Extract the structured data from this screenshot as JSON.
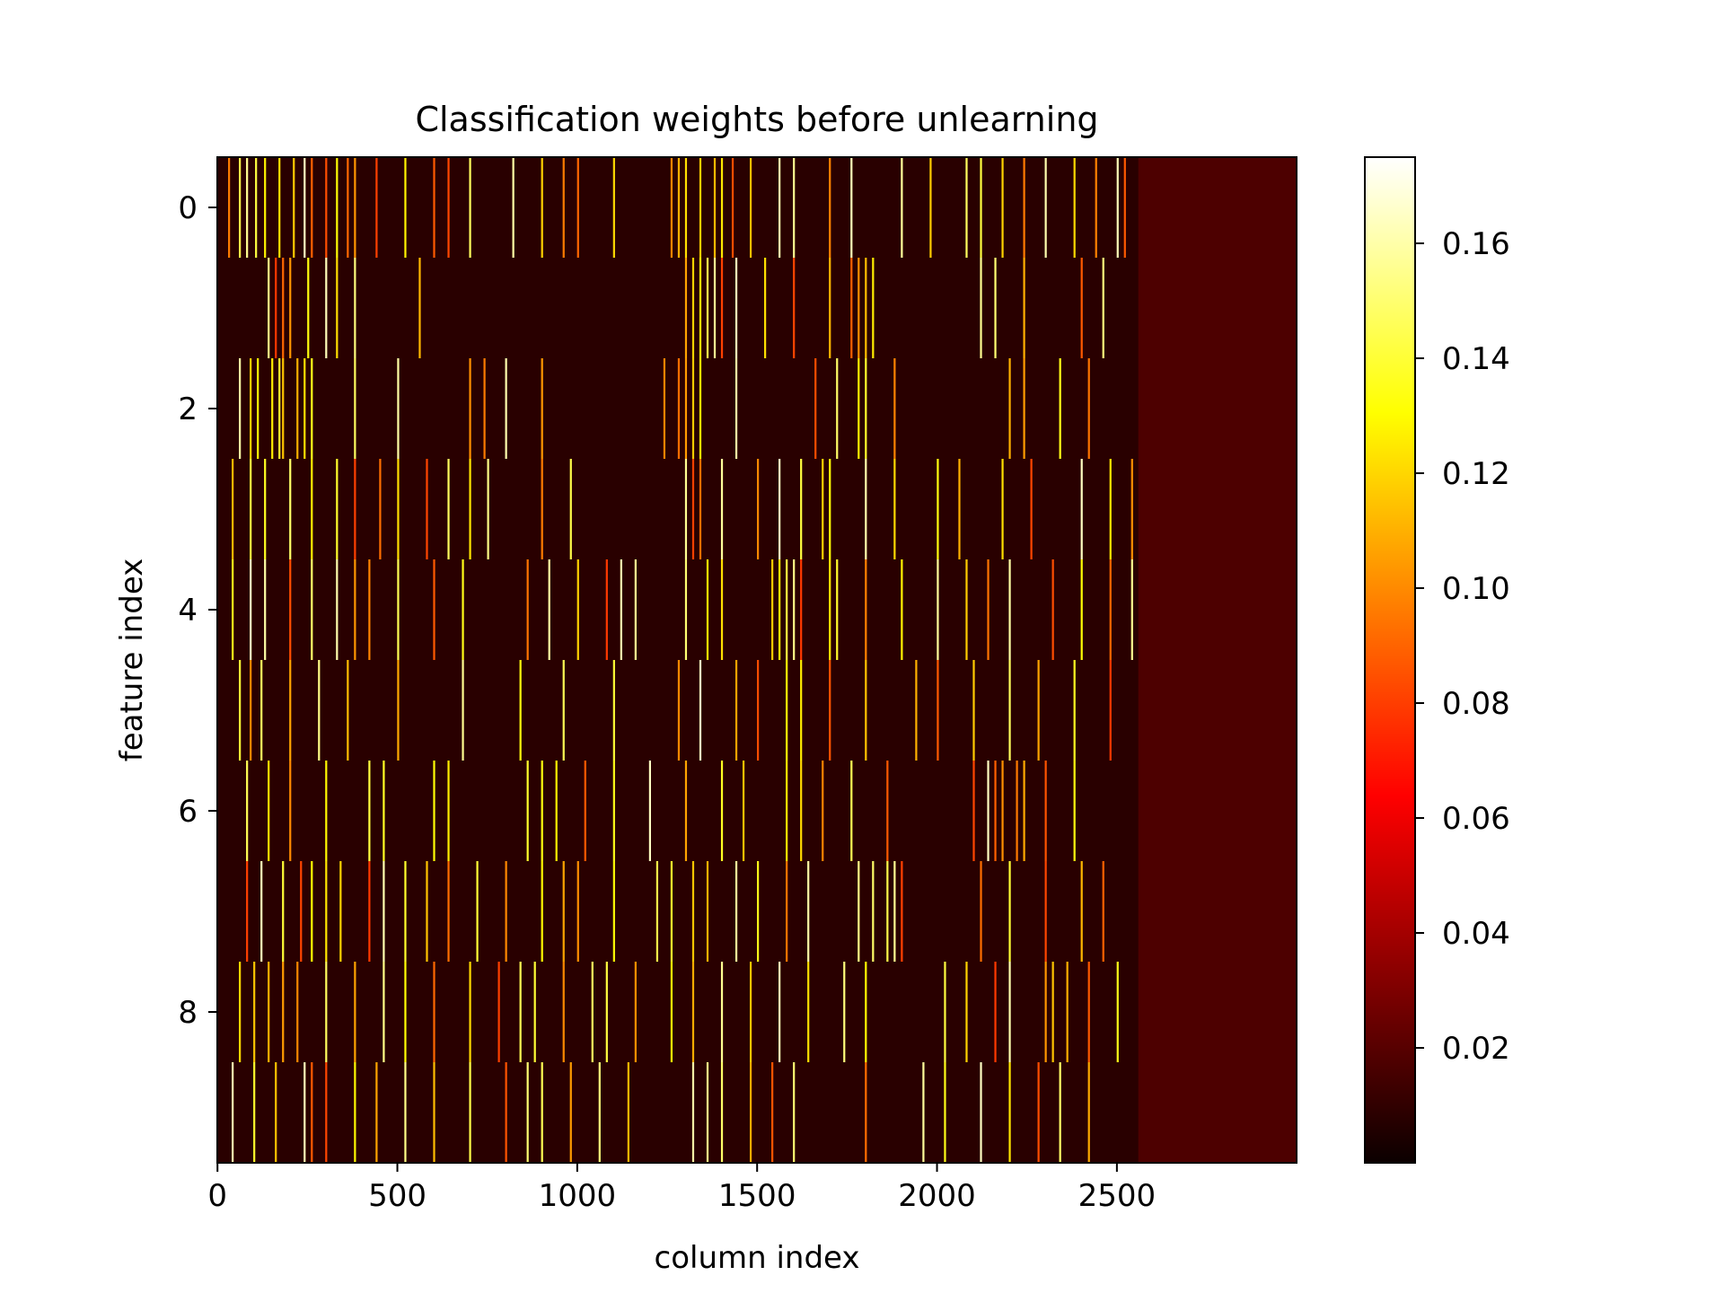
{
  "chart_data": {
    "type": "heatmap",
    "title": "Classification weights before unlearning",
    "xlabel": "column index",
    "ylabel": "feature index",
    "x_range": [
      0,
      2999
    ],
    "y_range": [
      0,
      9
    ],
    "x_ticks": [
      0,
      500,
      1000,
      1500,
      2000,
      2500
    ],
    "y_ticks": [
      0,
      2,
      4,
      6,
      8
    ],
    "colormap": "hot",
    "colorbar": {
      "range": [
        0.0,
        0.175
      ],
      "ticks": [
        0.02,
        0.04,
        0.06,
        0.08,
        0.1,
        0.12,
        0.14,
        0.16
      ],
      "tick_labels": [
        "0.02",
        "0.04",
        "0.06",
        "0.08",
        "0.10",
        "0.12",
        "0.14",
        "0.16"
      ]
    },
    "rows": 10,
    "columns": 3000,
    "region_note_x": 2560,
    "stats": {
      "background_value": 0.003,
      "right_region_value": 0.012,
      "max_value": 0.175
    },
    "bright_columns": [
      [
        30,
        60,
        80,
        105,
        130,
        170,
        210,
        240,
        260,
        300,
        330,
        360,
        380,
        440,
        520,
        600,
        640,
        700,
        820,
        900,
        960,
        1000,
        1100,
        1260,
        1280,
        1300,
        1340,
        1380,
        1400,
        1430,
        1480,
        1560,
        1600,
        1700,
        1760,
        1900,
        1980,
        2080,
        2120,
        2180,
        2240,
        2300,
        2380,
        2440,
        2500,
        2520
      ],
      [
        140,
        160,
        180,
        200,
        250,
        300,
        330,
        380,
        560,
        1300,
        1320,
        1340,
        1360,
        1380,
        1400,
        1440,
        1520,
        1600,
        1700,
        1760,
        1780,
        1800,
        1820,
        2120,
        2160,
        2240,
        2400,
        2460
      ],
      [
        60,
        90,
        110,
        150,
        170,
        180,
        220,
        240,
        260,
        380,
        500,
        700,
        740,
        800,
        900,
        1240,
        1280,
        1300,
        1320,
        1340,
        1440,
        1660,
        1720,
        1780,
        1800,
        1880,
        2200,
        2240,
        2340,
        2420
      ],
      [
        40,
        90,
        130,
        200,
        260,
        330,
        380,
        450,
        500,
        580,
        640,
        700,
        750,
        900,
        980,
        1300,
        1320,
        1340,
        1400,
        1500,
        1560,
        1620,
        1680,
        1700,
        1800,
        1880,
        2000,
        2060,
        2180,
        2260,
        2400,
        2480,
        2540
      ],
      [
        40,
        90,
        130,
        200,
        260,
        330,
        380,
        420,
        500,
        600,
        680,
        860,
        920,
        1000,
        1080,
        1120,
        1160,
        1300,
        1360,
        1400,
        1540,
        1560,
        1580,
        1600,
        1620,
        1700,
        1720,
        1800,
        1900,
        2000,
        2080,
        2140,
        2200,
        2320,
        2400,
        2480,
        2540
      ],
      [
        60,
        90,
        120,
        200,
        280,
        360,
        500,
        680,
        840,
        960,
        1100,
        1280,
        1340,
        1440,
        1500,
        1580,
        1620,
        1700,
        1800,
        1940,
        2000,
        2100,
        2200,
        2280,
        2380,
        2480
      ],
      [
        80,
        140,
        200,
        300,
        420,
        460,
        600,
        640,
        860,
        900,
        940,
        1020,
        1100,
        1200,
        1300,
        1400,
        1460,
        1580,
        1620,
        1680,
        1760,
        1860,
        2100,
        2140,
        2160,
        2180,
        2220,
        2240,
        2300,
        2380
      ],
      [
        80,
        120,
        180,
        230,
        260,
        300,
        340,
        420,
        460,
        520,
        580,
        640,
        720,
        800,
        900,
        960,
        1000,
        1100,
        1220,
        1260,
        1320,
        1360,
        1440,
        1500,
        1580,
        1640,
        1780,
        1820,
        1860,
        1880,
        1900,
        2120,
        2200,
        2300,
        2400,
        2460
      ],
      [
        60,
        100,
        140,
        180,
        220,
        300,
        380,
        460,
        520,
        600,
        700,
        780,
        840,
        880,
        960,
        1040,
        1080,
        1160,
        1260,
        1320,
        1400,
        1480,
        1560,
        1640,
        1740,
        1800,
        2020,
        2080,
        2160,
        2200,
        2300,
        2320,
        2360,
        2420,
        2500
      ],
      [
        40,
        100,
        160,
        240,
        260,
        300,
        380,
        440,
        520,
        600,
        700,
        800,
        860,
        900,
        980,
        1060,
        1140,
        1320,
        1360,
        1400,
        1480,
        1540,
        1600,
        1800,
        1960,
        2020,
        2120,
        2200,
        2280,
        2340,
        2420
      ]
    ]
  }
}
